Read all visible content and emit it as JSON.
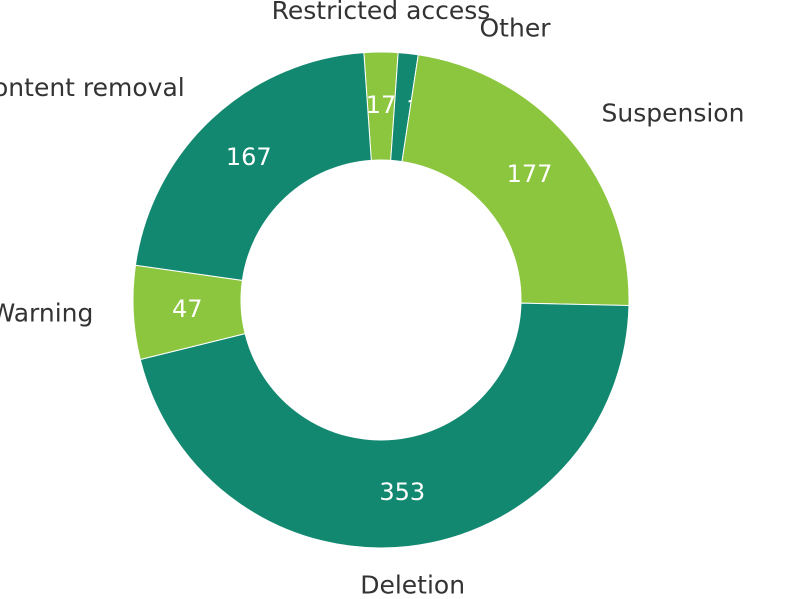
{
  "chart_data": {
    "type": "donut",
    "categories": [
      "Restricted access",
      "Other",
      "Suspension",
      "Deletion",
      "Warning",
      "Content removal"
    ],
    "values": [
      17,
      10,
      177,
      353,
      47,
      167
    ],
    "colors": [
      "#8cc63f",
      "#138871",
      "#8cc63f",
      "#138871",
      "#8cc63f",
      "#138871"
    ]
  }
}
